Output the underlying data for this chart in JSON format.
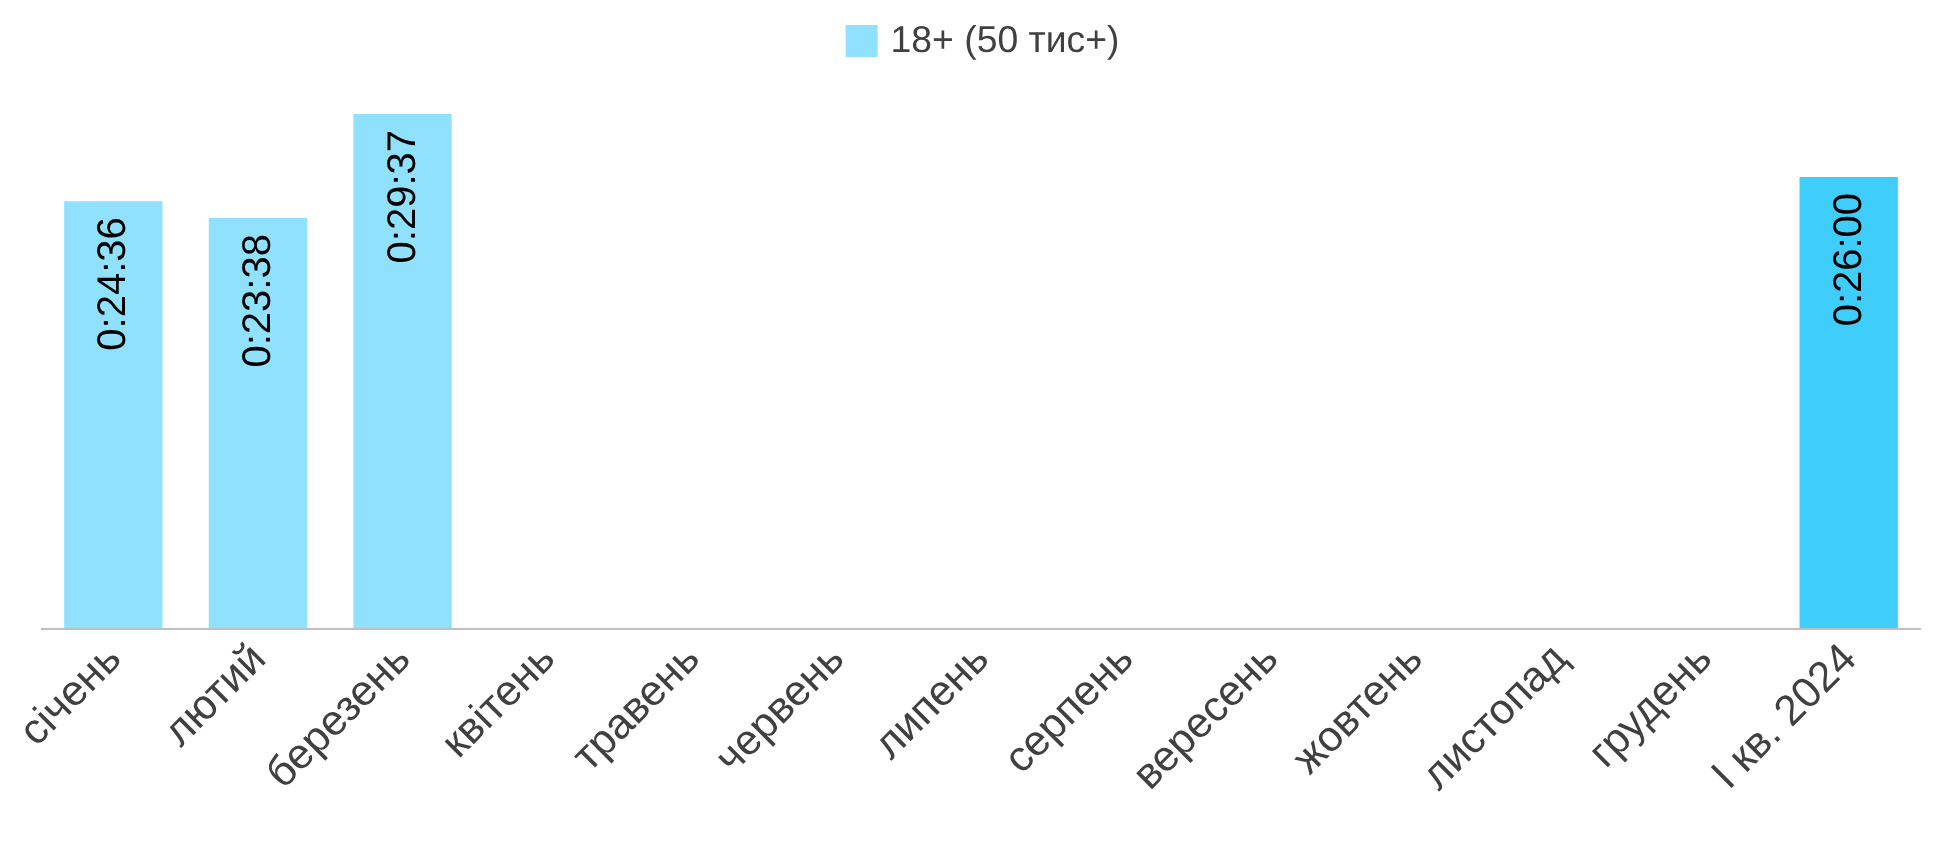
{
  "chart_data": {
    "type": "bar",
    "categories": [
      "січень",
      "лютий",
      "березень",
      "квітень",
      "травень",
      "червень",
      "липень",
      "серпень",
      "вересень",
      "жовтень",
      "листопад",
      "грудень",
      "I кв. 2024"
    ],
    "series": [
      {
        "name": "18+ (50 тис+)",
        "colors": [
          "#8fe1fd",
          "#8fe1fd",
          "#8fe1fd",
          null,
          null,
          null,
          null,
          null,
          null,
          null,
          null,
          null,
          "#3fcdfc"
        ],
        "values": [
          1476,
          1418,
          1777,
          null,
          null,
          null,
          null,
          null,
          null,
          null,
          null,
          null,
          1560
        ],
        "value_labels": [
          "0:24:36",
          "0:23:38",
          "0:29:37",
          null,
          null,
          null,
          null,
          null,
          null,
          null,
          null,
          null,
          "0:26:00"
        ]
      }
    ],
    "tick_labels": "x",
    "grid": false,
    "legend": "top"
  }
}
